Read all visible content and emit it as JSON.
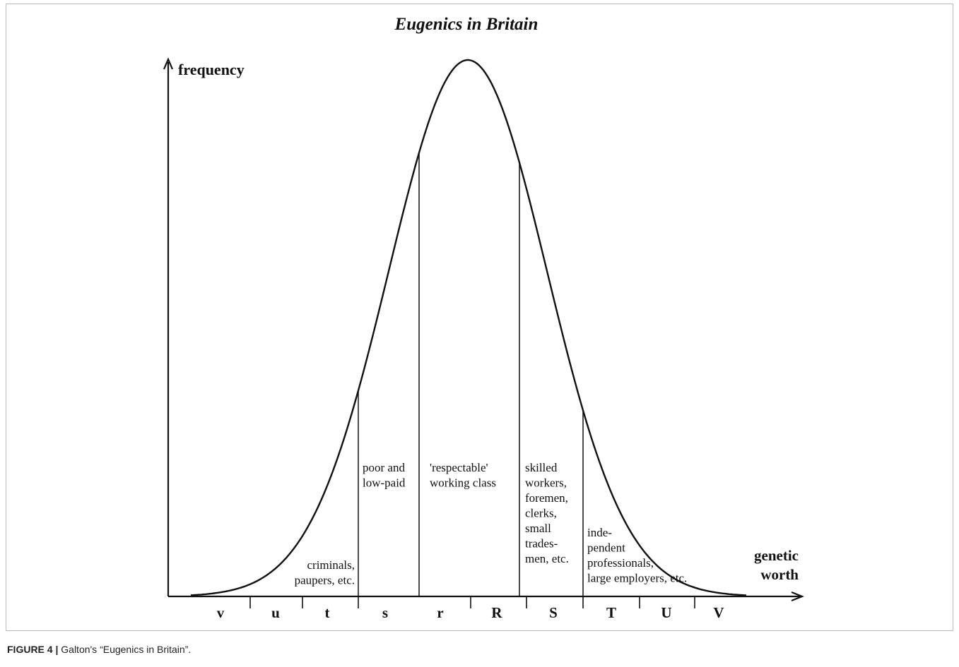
{
  "title": "Eugenics in Britain",
  "y_axis_label": "frequency",
  "x_axis_label": [
    "genetic",
    "worth"
  ],
  "regions": [
    {
      "lines": [
        "criminals,",
        "paupers, etc."
      ]
    },
    {
      "lines": [
        "poor and",
        "low-paid"
      ]
    },
    {
      "lines": [
        "'respectable'",
        "working class"
      ]
    },
    {
      "lines": [
        "skilled",
        "workers,",
        "foremen,",
        "clerks,",
        "small",
        "trades-",
        "men, etc."
      ]
    },
    {
      "lines": [
        "inde-",
        "pendent",
        "professionals,",
        "large employers, etc."
      ]
    }
  ],
  "grades": [
    "v",
    "u",
    "t",
    "s",
    "r",
    "R",
    "S",
    "T",
    "U",
    "V"
  ],
  "caption": {
    "label": "FIGURE 4 |",
    "text": "Galton's “Eugenics in Britain”."
  }
}
